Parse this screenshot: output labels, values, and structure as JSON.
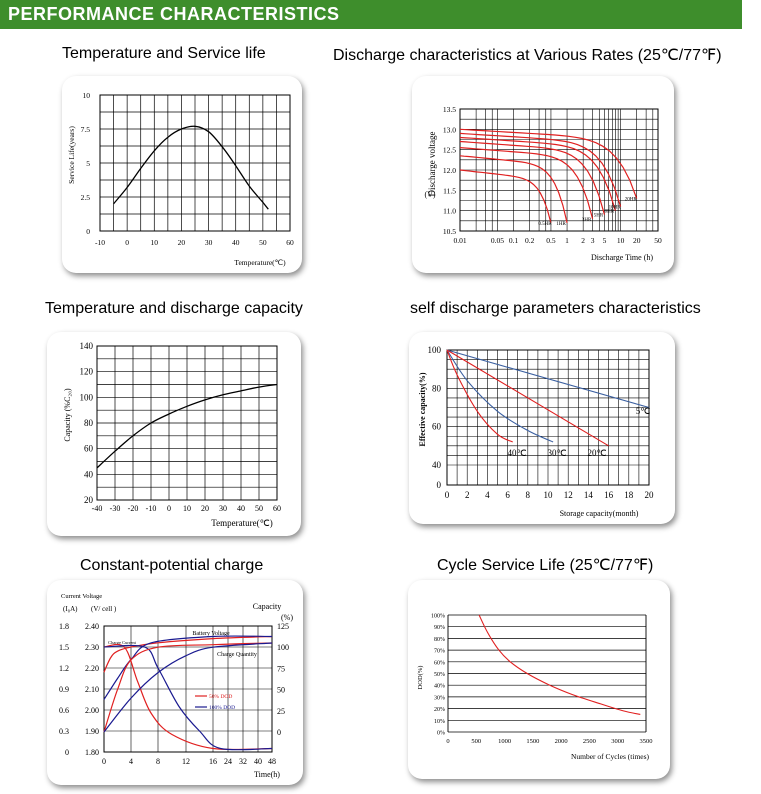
{
  "header": {
    "title": "PERFORMANCE CHARACTERISTICS"
  },
  "colors": {
    "header_bg": "#3e8e2c",
    "red": "#e02020",
    "blue": "#3a5fa0",
    "navy": "#1a1a90"
  },
  "chart_data": [
    {
      "id": "temp_service",
      "type": "line",
      "title": "Temperature and Service life",
      "xlabel": "Temperature(℃)",
      "ylabel": "Service Life(years)",
      "xlim": [
        -10,
        60
      ],
      "ylim": [
        0,
        10
      ],
      "xticks": [
        -10,
        0,
        10,
        20,
        30,
        40,
        50,
        60
      ],
      "yticks": [
        0,
        2.5,
        5,
        7.5,
        10
      ],
      "series": [
        {
          "name": "service life",
          "color": "#000000",
          "x": [
            -5,
            0,
            5,
            10,
            15,
            20,
            25,
            30,
            35,
            40,
            45,
            50,
            52
          ],
          "y": [
            2.0,
            3.2,
            4.6,
            5.9,
            6.9,
            7.5,
            7.7,
            7.3,
            6.2,
            4.8,
            3.3,
            2.1,
            1.6
          ]
        }
      ]
    },
    {
      "id": "discharge_rates",
      "type": "line",
      "title": "Discharge characteristics at Various Rates (25℃/77℉)",
      "xlabel": "Discharge Time (h)",
      "ylabel": "Discharge voltage",
      "yunit": "(V)",
      "xscale": "log",
      "xlim": [
        0.01,
        50
      ],
      "ylim": [
        10.5,
        13.5
      ],
      "xticks": [
        "0.01",
        "0.05",
        "0.1",
        "0.2",
        "0.5",
        "1",
        "2",
        "3",
        "5",
        "10",
        "20",
        "50"
      ],
      "xtick_values": [
        0.01,
        0.05,
        0.1,
        0.2,
        0.5,
        1,
        2,
        3,
        5,
        10,
        20,
        50
      ],
      "yticks": [
        "10.5",
        "11.0",
        "11.5",
        "12.0",
        "12.5",
        "13.0",
        "13.5"
      ],
      "ytick_values": [
        10.5,
        11.0,
        11.5,
        12.0,
        12.5,
        13.0,
        13.5
      ],
      "series": [
        {
          "name": "0.5HR",
          "plateau": 12.0,
          "end_t": 0.5,
          "end_v": 10.7
        },
        {
          "name": "1HR",
          "plateau": 12.35,
          "end_t": 1.0,
          "end_v": 10.7
        },
        {
          "name": "3HR",
          "plateau": 12.55,
          "end_t": 3.0,
          "end_v": 10.8
        },
        {
          "name": "5HR",
          "plateau": 12.7,
          "end_t": 5.0,
          "end_v": 10.9
        },
        {
          "name": "8HR",
          "plateau": 12.8,
          "end_t": 8.0,
          "end_v": 11.0
        },
        {
          "name": "10HR",
          "plateau": 12.9,
          "end_t": 10.0,
          "end_v": 11.1
        },
        {
          "name": "20HR",
          "plateau": 13.0,
          "end_t": 20.0,
          "end_v": 11.3
        }
      ]
    },
    {
      "id": "temp_capacity",
      "type": "line",
      "title": "Temperature and discharge capacity",
      "xlabel": "Temperature(℃)",
      "ylabel": "Capacity (%C₂₀)",
      "xlim": [
        -40,
        60
      ],
      "ylim": [
        20,
        140
      ],
      "xticks": [
        -40,
        -30,
        -20,
        -10,
        0,
        10,
        20,
        30,
        40,
        50,
        60
      ],
      "yticks": [
        20,
        40,
        60,
        80,
        100,
        120,
        140
      ],
      "series": [
        {
          "name": "capacity",
          "color": "#000000",
          "x": [
            -40,
            -30,
            -20,
            -10,
            0,
            10,
            20,
            30,
            40,
            50,
            60
          ],
          "y": [
            45,
            58,
            70,
            80,
            87,
            93,
            98,
            102,
            105,
            108,
            110
          ]
        }
      ]
    },
    {
      "id": "self_discharge",
      "type": "line",
      "title": "self discharge parameters characteristics",
      "xlabel": "Storage capacity(month)",
      "ylabel": "Effective capacity(%)",
      "xlim": [
        0,
        20
      ],
      "ylim": [
        0,
        100
      ],
      "xticks": [
        0,
        2,
        4,
        6,
        8,
        10,
        12,
        14,
        16,
        18,
        20
      ],
      "yticks": [
        0,
        40,
        60,
        80,
        100
      ],
      "series": [
        {
          "name": "5℃",
          "color": "#3a5fa0",
          "x": [
            0,
            20
          ],
          "y": [
            100,
            70
          ]
        },
        {
          "name": "20℃",
          "color": "#e02020",
          "x": [
            0,
            16
          ],
          "y": [
            100,
            50
          ]
        },
        {
          "name": "30℃",
          "color": "#3a5fa0",
          "x": [
            0,
            2,
            5,
            8,
            10.5
          ],
          "y": [
            100,
            84,
            68,
            58,
            52
          ]
        },
        {
          "name": "40℃",
          "color": "#e02020",
          "x": [
            0,
            1,
            3,
            5,
            6.5
          ],
          "y": [
            100,
            87,
            68,
            56,
            52
          ]
        }
      ]
    },
    {
      "id": "constant_charge",
      "type": "line",
      "title": "Constant-potential charge",
      "xlabel": "Time(h)",
      "ylabel_current": "Current Voltage",
      "unit_current": "(I₀A)",
      "unit_voltage": "(V/ cell )",
      "ylabel_capacity": "Capacity",
      "unit_capacity": "(%)",
      "xticks": [
        "0",
        "4",
        "8",
        "12",
        "16",
        "24",
        "32",
        "40",
        "48"
      ],
      "yticks_current": [
        "0",
        "0.3",
        "0.6",
        "0.9",
        "1.2",
        "1.5",
        "1.8"
      ],
      "yticks_voltage": [
        "1.80",
        "1.90",
        "2.00",
        "2.10",
        "2.20",
        "2.30",
        "2.40"
      ],
      "yticks_capacity": [
        "0",
        "25",
        "50",
        "75",
        "100",
        "125"
      ],
      "legend": [
        {
          "name": "50% DOD",
          "color": "#e02020"
        },
        {
          "name": "100% DOD",
          "color": "#1a1a90"
        }
      ],
      "labels": {
        "battery_voltage": "Battery Voltage",
        "charge_quantity": "Charge Quantity",
        "charge_current": "Charge Current"
      },
      "series": [
        {
          "name": "Battery Voltage 50%",
          "color": "#e02020",
          "x": [
            0,
            1,
            2,
            4,
            8,
            16,
            48
          ],
          "y_voltage": [
            2.18,
            2.25,
            2.28,
            2.3,
            2.32,
            2.34,
            2.35
          ]
        },
        {
          "name": "Battery Voltage 100%",
          "color": "#1a1a90",
          "x": [
            0,
            2,
            4,
            7,
            16,
            48
          ],
          "y_voltage": [
            2.05,
            2.15,
            2.24,
            2.32,
            2.35,
            2.35
          ]
        },
        {
          "name": "Charge Current 50%",
          "color": "#e02020",
          "x": [
            0,
            3,
            5,
            7,
            10,
            16,
            48
          ],
          "y_current": [
            1.5,
            1.5,
            1.0,
            0.55,
            0.25,
            0.05,
            0.05
          ]
        },
        {
          "name": "Charge Current 100%",
          "color": "#1a1a90",
          "x": [
            0,
            6,
            8,
            11,
            14,
            20,
            48
          ],
          "y_current": [
            1.5,
            1.5,
            1.2,
            0.65,
            0.3,
            0.05,
            0.05
          ]
        },
        {
          "name": "Charge Quantity 50%",
          "color": "#e02020",
          "x": [
            0,
            2,
            4,
            8,
            16,
            48
          ],
          "y_capacity": [
            0,
            50,
            85,
            100,
            103,
            105
          ]
        },
        {
          "name": "Charge Quantity 100%",
          "color": "#1a1a90",
          "x": [
            0,
            4,
            8,
            12,
            16,
            48
          ],
          "y_capacity": [
            0,
            40,
            70,
            90,
            100,
            105
          ]
        }
      ]
    },
    {
      "id": "cycle_life",
      "type": "line",
      "title": "Cycle Service Life (25℃/77℉)",
      "xlabel": "Number of Cycles (times)",
      "ylabel": "DOD(%)",
      "xlim": [
        0,
        3500
      ],
      "ylim": [
        0,
        100
      ],
      "xticks": [
        0,
        500,
        1000,
        1500,
        2000,
        2500,
        3000,
        3500
      ],
      "yticks": [
        "0%",
        "10%",
        "20%",
        "30%",
        "40%",
        "50%",
        "60%",
        "70%",
        "80%",
        "90%",
        "100%"
      ],
      "series": [
        {
          "name": "DOD",
          "color": "#e02020",
          "x": [
            550,
            700,
            900,
            1100,
            1400,
            1800,
            2200,
            2700,
            3100,
            3400
          ],
          "y": [
            100,
            85,
            70,
            60,
            50,
            40,
            32,
            24,
            18,
            15
          ]
        }
      ]
    }
  ]
}
